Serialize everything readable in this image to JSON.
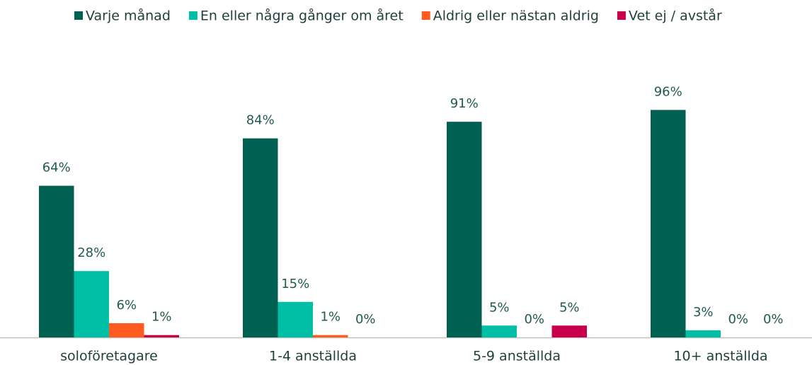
{
  "chart_data": {
    "type": "bar",
    "categories": [
      "soloföretagare",
      "1-4 anställda",
      "5-9 anställda",
      "10+ anställda"
    ],
    "series": [
      {
        "name": "Varje månad",
        "color": "#006152",
        "values": [
          64,
          84,
          91,
          96
        ],
        "value_labels": [
          "64%",
          "84%",
          "91%",
          "96%"
        ]
      },
      {
        "name": "En eller några gånger om året",
        "color": "#00bfa5",
        "values": [
          28,
          15,
          5,
          3
        ],
        "value_labels": [
          "28%",
          "15%",
          "5%",
          "3%"
        ]
      },
      {
        "name": "Aldrig eller nästan aldrig",
        "color": "#ff5a1f",
        "values": [
          6,
          1,
          0,
          0
        ],
        "value_labels": [
          "6%",
          "1%",
          "0%",
          "0%"
        ]
      },
      {
        "name": "Vet ej / avstår",
        "color": "#c8004b",
        "values": [
          1,
          0,
          5,
          0
        ],
        "value_labels": [
          "1%",
          "0%",
          "5%",
          "0%"
        ]
      }
    ],
    "legend": "top"
  }
}
